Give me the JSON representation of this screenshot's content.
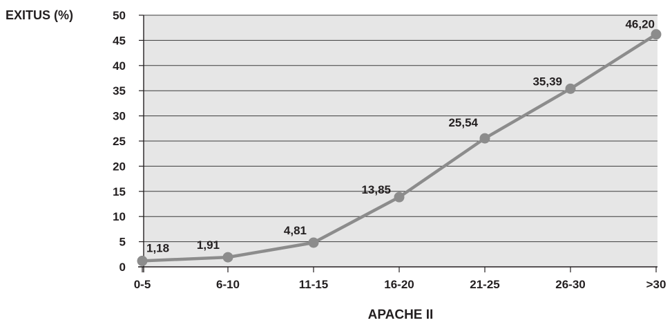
{
  "chart_data": {
    "type": "line",
    "title": "",
    "xlabel": "APACHE II",
    "ylabel": "EXITUS (%)",
    "categories": [
      "0-5",
      "6-10",
      "11-15",
      "16-20",
      "21-25",
      "26-30",
      ">30"
    ],
    "series": [
      {
        "values": [
          1.18,
          1.91,
          4.81,
          13.85,
          25.54,
          35.39,
          46.2
        ],
        "labels": [
          "1,18",
          "1,91",
          "4,81",
          "13,85",
          "25,54",
          "35,39",
          "46,20"
        ]
      }
    ],
    "ylim": [
      0,
      50
    ],
    "yticks": [
      "0",
      "5",
      "10",
      "15",
      "20",
      "25",
      "30",
      "35",
      "40",
      "45",
      "50"
    ],
    "grid": true,
    "colors": {
      "plot_background": "#e6e6e6",
      "line": "#8c8c8c",
      "marker": "#8c8c8c",
      "gridline": "#3a3a3a",
      "text": "#231f20"
    }
  }
}
